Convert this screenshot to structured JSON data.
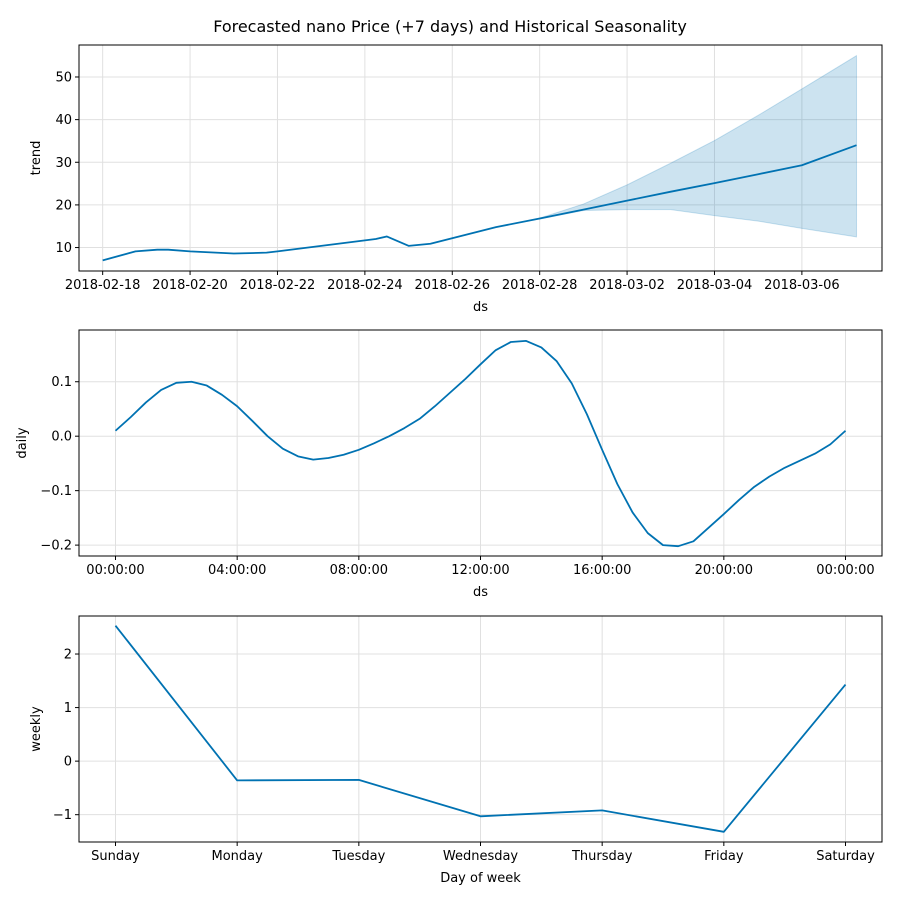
{
  "figure": {
    "title": "Forecasted nano Price (+7 days) and Historical Seasonality"
  },
  "colors": {
    "line": "#0072b2",
    "band": "#0072b2",
    "grid": "#e0e0e0",
    "axis": "#000000"
  },
  "chart_data": [
    {
      "type": "line",
      "xlabel": "ds",
      "ylabel": "trend",
      "grid": true,
      "x_range": [
        "2018-02-17T11:00",
        "2018-03-07T20:00"
      ],
      "ylim": [
        4.5,
        57.5
      ],
      "x_ticks": [
        "2018-02-18",
        "2018-02-20",
        "2018-02-22",
        "2018-02-24",
        "2018-02-26",
        "2018-02-28",
        "2018-03-02",
        "2018-03-04",
        "2018-03-06"
      ],
      "y_ticks": [
        10,
        20,
        30,
        40,
        50
      ],
      "series": [
        {
          "x": [
            "2018-02-18T00:00",
            "2018-02-18T18:00",
            "2018-02-19T06:00",
            "2018-02-19T12:00",
            "2018-02-20T00:00",
            "2018-02-21T00:00",
            "2018-02-21T18:00",
            "2018-02-22T00:00",
            "2018-02-24T06:00",
            "2018-02-24T12:00",
            "2018-02-25T00:00",
            "2018-02-25T12:00",
            "2018-02-27T00:00",
            "2018-02-28T00:00",
            "2018-03-01T00:00",
            "2018-03-02T00:00",
            "2018-03-03T00:00",
            "2018-03-04T00:00",
            "2018-03-05T00:00",
            "2018-03-06T00:00",
            "2018-03-07T06:00"
          ],
          "values": [
            7.0,
            9.1,
            9.5,
            9.5,
            9.1,
            8.6,
            8.8,
            9.1,
            12.0,
            12.6,
            10.4,
            10.9,
            14.8,
            16.8,
            18.9,
            21.0,
            23.1,
            25.1,
            27.2,
            29.3,
            34.0
          ]
        }
      ],
      "uncertainty": {
        "x": [
          "2018-02-28T00:00",
          "2018-03-01T00:00",
          "2018-03-02T00:00",
          "2018-03-03T00:00",
          "2018-03-04T00:00",
          "2018-03-05T00:00",
          "2018-03-06T00:00",
          "2018-03-07T06:00"
        ],
        "upper": [
          16.9,
          20.2,
          24.7,
          29.8,
          35.1,
          41.0,
          47.2,
          55.0
        ],
        "lower": [
          16.7,
          18.7,
          18.9,
          18.9,
          17.5,
          16.2,
          14.5,
          12.5
        ]
      }
    },
    {
      "type": "line",
      "xlabel": "ds",
      "ylabel": "daily",
      "grid": true,
      "x_range_hours": [
        -1.2,
        25.2
      ],
      "ylim": [
        -0.22,
        0.195
      ],
      "x_tick_hours": [
        0,
        4,
        8,
        12,
        16,
        20,
        24
      ],
      "x_ticks": [
        "00:00:00",
        "04:00:00",
        "08:00:00",
        "12:00:00",
        "16:00:00",
        "20:00:00",
        "00:00:00"
      ],
      "y_ticks": [
        -0.2,
        -0.1,
        0.0,
        0.1
      ],
      "y_tick_labels": [
        "−0.2",
        "−0.1",
        "0.0",
        "0.1"
      ],
      "series": [
        {
          "x_hours": [
            0,
            0.5,
            1,
            1.5,
            2,
            2.5,
            3,
            3.5,
            4,
            4.5,
            5,
            5.5,
            6,
            6.5,
            7,
            7.5,
            8,
            8.5,
            9,
            9.5,
            10,
            10.5,
            11,
            11.5,
            12,
            12.5,
            13,
            13.5,
            14,
            14.5,
            15,
            15.5,
            16,
            16.5,
            17,
            17.5,
            18,
            18.5,
            19,
            19.5,
            20,
            20.5,
            21,
            21.5,
            22,
            22.5,
            23,
            23.5,
            24
          ],
          "values": [
            0.01,
            0.035,
            0.062,
            0.085,
            0.098,
            0.1,
            0.093,
            0.076,
            0.055,
            0.028,
            0.0,
            -0.023,
            -0.037,
            -0.043,
            -0.04,
            -0.034,
            -0.025,
            -0.013,
            0.0,
            0.015,
            0.032,
            0.055,
            0.08,
            0.105,
            0.132,
            0.158,
            0.173,
            0.175,
            0.163,
            0.138,
            0.097,
            0.04,
            -0.025,
            -0.088,
            -0.14,
            -0.178,
            -0.2,
            -0.202,
            -0.193,
            -0.168,
            -0.143,
            -0.117,
            -0.093,
            -0.074,
            -0.058,
            -0.045,
            -0.032,
            -0.015,
            0.01
          ]
        }
      ]
    },
    {
      "type": "line",
      "xlabel": "Day of week",
      "ylabel": "weekly",
      "grid": true,
      "categories": [
        "Sunday",
        "Monday",
        "Tuesday",
        "Wednesday",
        "Thursday",
        "Friday",
        "Saturday"
      ],
      "ylim": [
        -1.51,
        2.71
      ],
      "y_ticks": [
        -1,
        0,
        1,
        2
      ],
      "y_tick_labels": [
        "−1",
        "0",
        "1",
        "2"
      ],
      "series": [
        {
          "values": [
            2.53,
            -0.36,
            -0.35,
            -1.03,
            -0.92,
            -1.32,
            1.43
          ]
        }
      ]
    }
  ]
}
